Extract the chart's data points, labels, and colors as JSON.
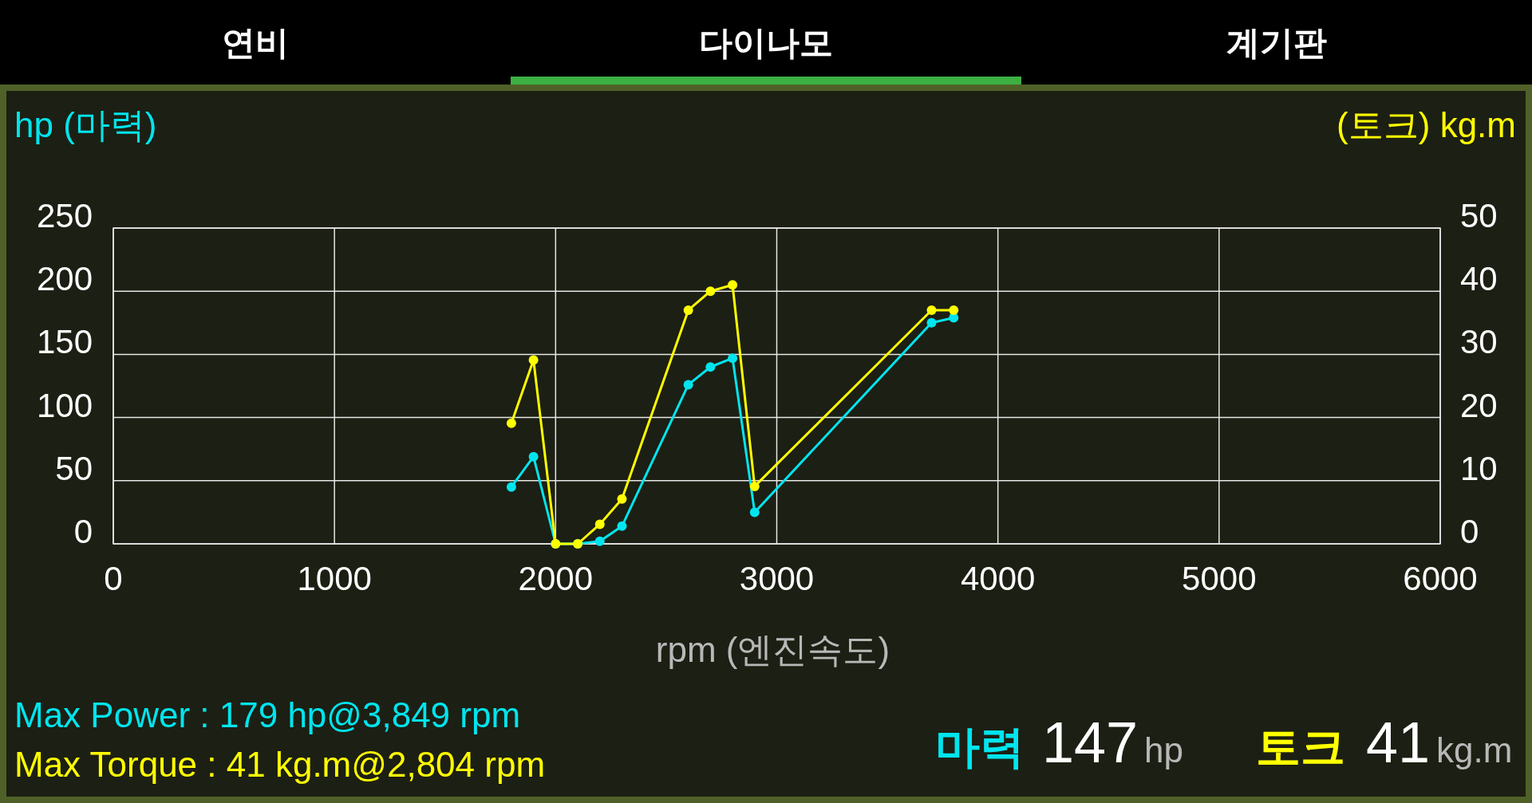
{
  "chart_data": {
    "type": "line",
    "x": [
      1800,
      1900,
      2000,
      2100,
      2200,
      2300,
      2600,
      2700,
      2800,
      2900,
      3700,
      3800
    ],
    "series": [
      {
        "color": "#00e5ee",
        "values": [
          45,
          69,
          0,
          0,
          2,
          14,
          126,
          140,
          147,
          25,
          175,
          179
        ]
      },
      {
        "color": "#ffff00",
        "axis": "y2",
        "values": [
          19.1,
          29.1,
          0,
          0,
          3.1,
          7.1,
          37,
          40,
          41,
          9.1,
          37,
          37
        ]
      }
    ],
    "xlim": [
      0,
      6000
    ],
    "xticks": [
      0,
      1000,
      2000,
      3000,
      4000,
      5000,
      6000
    ],
    "ylim": [
      0,
      250
    ],
    "yticks": [
      0,
      50,
      100,
      150,
      200,
      250
    ],
    "y2lim": [
      0,
      50
    ],
    "y2ticks": [
      0,
      10,
      20,
      30,
      40,
      50
    ],
    "xlabel": "rpm (엔진속도)",
    "ylabel": "hp (마력)",
    "y2label": "(토크) kg.m",
    "grid": true,
    "marker": "circle",
    "line_style": "solid",
    "annotations": [
      "연비",
      "다이나모",
      "계기판",
      "Max Power : 179 hp@3,849 rpm",
      "Max Torque : 41 kg.m@2,804 rpm",
      "마력",
      "147",
      "hp",
      "토크",
      "41",
      "kg.m"
    ]
  }
}
